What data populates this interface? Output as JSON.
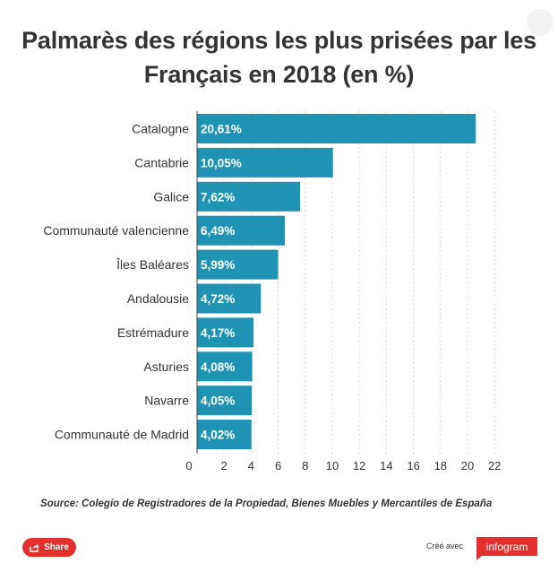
{
  "chart_data": {
    "type": "bar",
    "orientation": "horizontal",
    "title": "Palmarès des régions les plus prisées par les Français en 2018 (en %)",
    "categories": [
      "Catalogne",
      "Cantabrie",
      "Galice",
      "Communauté valencienne",
      "Îles Baléares",
      "Andalousie",
      "Estrémadure",
      "Asturies",
      "Navarre",
      "Communauté de Madrid"
    ],
    "values": [
      20.61,
      10.05,
      7.62,
      6.49,
      5.99,
      4.72,
      4.17,
      4.08,
      4.05,
      4.02
    ],
    "value_labels": [
      "20,61%",
      "10,05%",
      "7,62%",
      "6,49%",
      "5,99%",
      "4,72%",
      "4,17%",
      "4,08%",
      "4,05%",
      "4,02%"
    ],
    "xlim": [
      0,
      22
    ],
    "xticks": [
      0,
      2,
      4,
      6,
      8,
      10,
      12,
      14,
      16,
      18,
      20,
      22
    ],
    "grid": true,
    "bar_color": "#1f93b4"
  },
  "source": "Source: Colegio de Registradores de la Propiedad, Bienes Muebles y Mercantiles de España",
  "footer": {
    "share_label": "Share",
    "credit_text": "Créé avec",
    "brand": "infogram",
    "brand_color": "#e42f2f"
  }
}
